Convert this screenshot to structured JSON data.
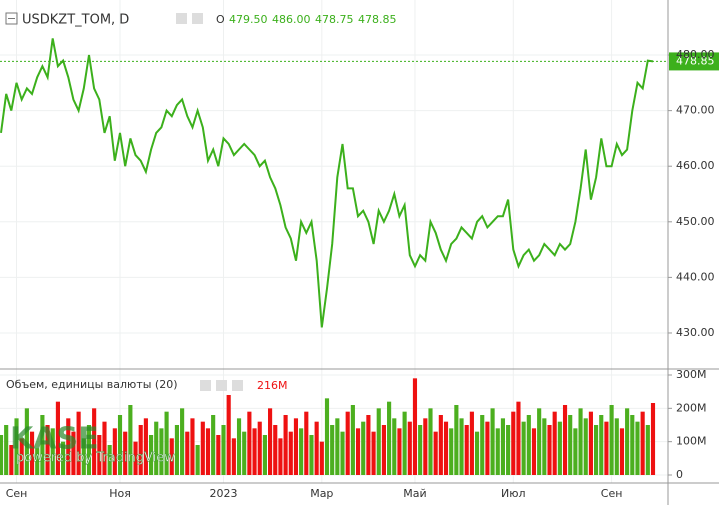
{
  "header": {
    "symbol": "USDKZT_TOM, D",
    "open_label": "O",
    "open": "479.50",
    "high": "486.00",
    "low": "478.75",
    "close": "478.85"
  },
  "volume_legend": {
    "title": "Объем, единицы валюты (20)",
    "last_label": "216M"
  },
  "watermark": {
    "brand": "KASE",
    "powered": "powered by TradingView"
  },
  "chart_data": [
    {
      "type": "line",
      "categories": [
        null,
        null,
        null,
        "Сен",
        null,
        null,
        null,
        null,
        null,
        null,
        null,
        null,
        null,
        null,
        null,
        null,
        null,
        null,
        null,
        null,
        null,
        null,
        null,
        "Ноя",
        null,
        null,
        null,
        null,
        null,
        null,
        null,
        null,
        null,
        null,
        null,
        null,
        null,
        null,
        null,
        null,
        null,
        null,
        null,
        "2023",
        null,
        null,
        null,
        null,
        null,
        null,
        null,
        null,
        null,
        null,
        null,
        null,
        null,
        null,
        null,
        null,
        null,
        null,
        "Мар",
        null,
        null,
        null,
        null,
        null,
        null,
        null,
        null,
        null,
        null,
        null,
        null,
        null,
        null,
        null,
        null,
        null,
        "Май",
        null,
        null,
        null,
        null,
        null,
        null,
        null,
        null,
        null,
        null,
        null,
        null,
        null,
        null,
        null,
        null,
        null,
        null,
        "Июл",
        null,
        null,
        null,
        null,
        null,
        null,
        null,
        null,
        null,
        null,
        null,
        null,
        null,
        null,
        null,
        null,
        null,
        null,
        "Сен",
        null,
        null,
        null,
        null,
        null,
        null,
        null,
        null
      ],
      "series": [
        {
          "name": "USDKZT_TOM",
          "color": "#3cb01c",
          "values": [
            466,
            473,
            470,
            475,
            472,
            474,
            473,
            476,
            478,
            476,
            483,
            478,
            479,
            476,
            472,
            470,
            474,
            480,
            474,
            472,
            466,
            469,
            461,
            466,
            460,
            465,
            462,
            461,
            459,
            463,
            466,
            467,
            470,
            469,
            471,
            472,
            469,
            467,
            470,
            467,
            461,
            463,
            460,
            465,
            464,
            462,
            463,
            464,
            463,
            462,
            460,
            461,
            458,
            456,
            453,
            449,
            447,
            443,
            450,
            448,
            450,
            443,
            431,
            438,
            446,
            458,
            464,
            456,
            456,
            451,
            452,
            450,
            446,
            452,
            450,
            452,
            455,
            451,
            453,
            444,
            442,
            444,
            443,
            450,
            448,
            445,
            443,
            446,
            447,
            449,
            448,
            447,
            450,
            451,
            449,
            450,
            451,
            451,
            454,
            445,
            442,
            444,
            445,
            443,
            444,
            446,
            445,
            444,
            446,
            445,
            446,
            450,
            456,
            463,
            454,
            458,
            465,
            460,
            460,
            464,
            462,
            463,
            470,
            475,
            474,
            479,
            478.85
          ]
        }
      ],
      "ylim": [
        423.7,
        489.9
      ],
      "yticks": [
        {
          "value": 430,
          "label": "430.00"
        },
        {
          "value": 440,
          "label": "440.00"
        },
        {
          "value": 450,
          "label": "450.00"
        },
        {
          "value": 460,
          "label": "460.00"
        },
        {
          "value": 470,
          "label": "470.00"
        },
        {
          "value": 480,
          "label": "480.00"
        }
      ],
      "grid": true
    },
    {
      "type": "bar",
      "series": [
        {
          "name": "Объем",
          "color": "#4caf1f",
          "down_color": "#ee1111",
          "values": [
            120,
            150,
            90,
            170,
            110,
            200,
            130,
            80,
            180,
            150,
            140,
            220,
            100,
            170,
            130,
            190,
            110,
            150,
            200,
            120,
            160,
            90,
            140,
            180,
            130,
            210,
            100,
            150,
            170,
            120,
            160,
            140,
            190,
            110,
            150,
            200,
            130,
            170,
            90,
            160,
            140,
            180,
            120,
            150,
            240,
            110,
            170,
            130,
            190,
            140,
            160,
            120,
            200,
            150,
            110,
            180,
            130,
            170,
            140,
            190,
            120,
            160,
            100,
            230,
            150,
            170,
            130,
            190,
            210,
            140,
            160,
            180,
            130,
            200,
            150,
            220,
            170,
            140,
            190,
            160,
            290,
            150,
            170,
            200,
            130,
            180,
            160,
            140,
            210,
            170,
            150,
            190,
            130,
            180,
            160,
            200,
            140,
            170,
            150,
            190,
            220,
            160,
            180,
            140,
            200,
            170,
            150,
            190,
            160,
            210,
            180,
            140,
            200,
            170,
            190,
            150,
            180,
            160,
            210,
            170,
            140,
            200,
            180,
            160,
            190,
            150,
            216
          ]
        }
      ],
      "ylim": [
        -24,
        315
      ],
      "yticks": [
        0,
        {
          "value": 100,
          "label": "100M"
        },
        {
          "value": 200,
          "label": "200M"
        },
        {
          "value": 300,
          "label": "300M"
        }
      ],
      "grid": true
    }
  ]
}
